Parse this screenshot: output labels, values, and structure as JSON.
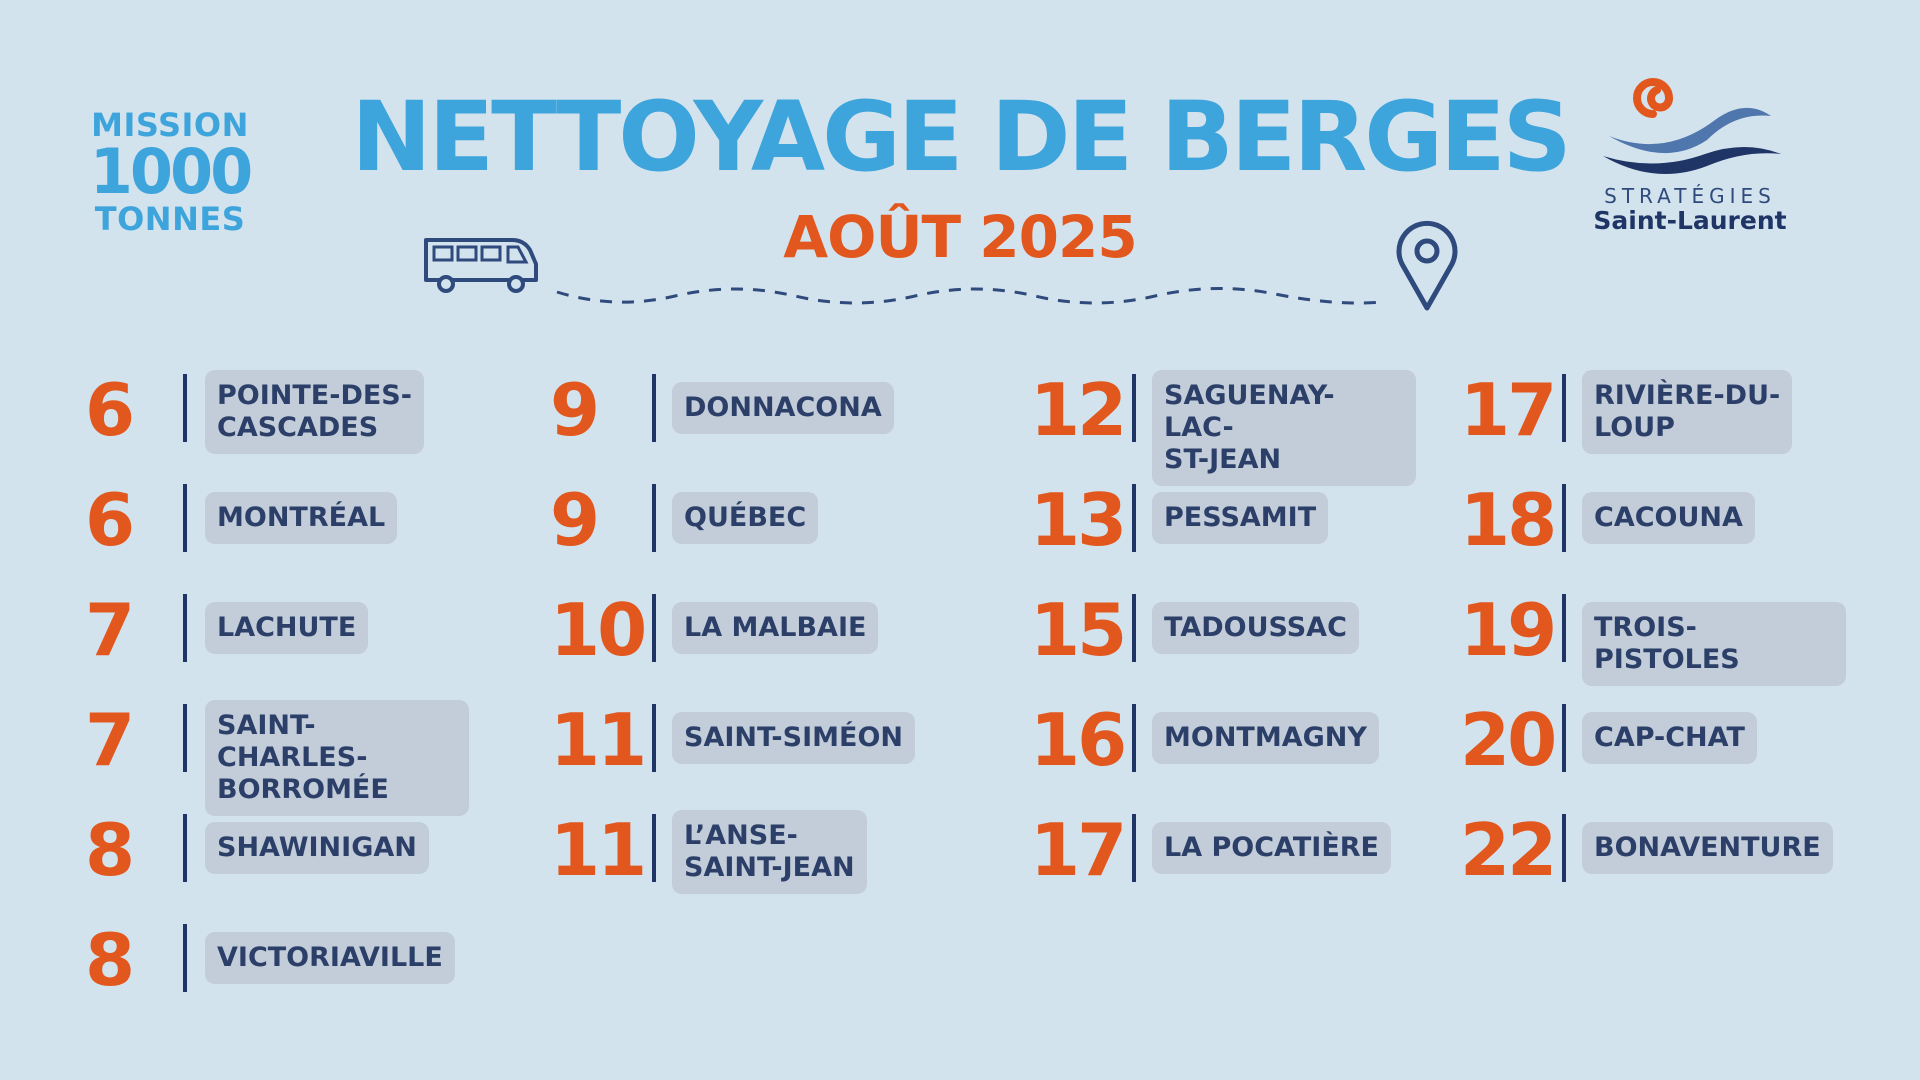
{
  "logo_left": {
    "line1": "MISSION",
    "line2": "1000",
    "line3": "TONNES"
  },
  "title": "NETTOYAGE DE BERGES",
  "subtitle": "AOÛT 2025",
  "logo_right": {
    "line1": "STRATÉGIES",
    "line2": "Saint-Laurent"
  },
  "colors": {
    "background": "#d3e3ed",
    "title": "#3ea4dc",
    "accent": "#e2571d",
    "navy": "#1f3566",
    "chip": "#c3ccd9"
  },
  "schedule": {
    "col1": [
      {
        "day": "6",
        "place": "POINTE-DES-\nCASCADES"
      },
      {
        "day": "6",
        "place": "MONTRÉAL"
      },
      {
        "day": "7",
        "place": "LACHUTE"
      },
      {
        "day": "7",
        "place": "SAINT-CHARLES-\nBORROMÉE"
      },
      {
        "day": "8",
        "place": "SHAWINIGAN"
      },
      {
        "day": "8",
        "place": "VICTORIAVILLE"
      }
    ],
    "col2": [
      {
        "day": "9",
        "place": "DONNACONA"
      },
      {
        "day": "9",
        "place": "QUÉBEC"
      },
      {
        "day": "10",
        "place": "LA MALBAIE"
      },
      {
        "day": "11",
        "place": "SAINT-SIMÉON"
      },
      {
        "day": "11",
        "place": "L’ANSE-\nSAINT-JEAN"
      }
    ],
    "col3": [
      {
        "day": "12",
        "place": "SAGUENAY-LAC-\nST-JEAN"
      },
      {
        "day": "13",
        "place": "PESSAMIT"
      },
      {
        "day": "15",
        "place": "TADOUSSAC"
      },
      {
        "day": "16",
        "place": "MONTMAGNY"
      },
      {
        "day": "17",
        "place": "LA POCATIÈRE"
      }
    ],
    "col4": [
      {
        "day": "17",
        "place": "RIVIÈRE-DU-\nLOUP"
      },
      {
        "day": "18",
        "place": "CACOUNA"
      },
      {
        "day": "19",
        "place": "TROIS-PISTOLES"
      },
      {
        "day": "20",
        "place": "CAP-CHAT"
      },
      {
        "day": "22",
        "place": "BONAVENTURE"
      }
    ]
  }
}
